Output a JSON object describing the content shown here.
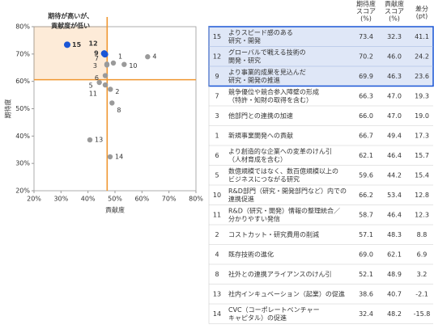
{
  "chart_data": {
    "type": "scatter",
    "xlabel": "貢献度",
    "ylabel": "期待度",
    "annotation": [
      "期待が高いが、",
      "貢献度が低い"
    ],
    "xlim": [
      20,
      80
    ],
    "ylim": [
      20,
      80
    ],
    "xticks": [
      {
        "value": 20,
        "label": "20%"
      },
      {
        "value": 30,
        "label": "30%"
      },
      {
        "value": 40,
        "label": "40%"
      },
      {
        "value": 50,
        "label": "50%"
      },
      {
        "value": 60,
        "label": "60%"
      },
      {
        "value": 70,
        "label": "70%"
      },
      {
        "value": 80,
        "label": "80%"
      }
    ],
    "yticks": [
      {
        "value": 20,
        "label": "20%"
      },
      {
        "value": 30,
        "label": "30%"
      },
      {
        "value": 40,
        "label": "40%"
      },
      {
        "value": 50,
        "label": "50%"
      },
      {
        "value": 60,
        "label": "60%"
      },
      {
        "value": 70,
        "label": "70%"
      },
      {
        "value": 80,
        "label": "80%"
      }
    ],
    "ref_x": 47.1,
    "ref_y": 60.6,
    "highlight_color": "#1a56d6",
    "point_color": "#9a9a9a",
    "ref_color": "#f0962f",
    "zone_color": "#fdebd8"
  },
  "table": {
    "header": [
      [
        "期待度",
        "スコア",
        "(%)"
      ],
      [
        "貢献度",
        "スコア",
        "(%)"
      ],
      [
        "差分",
        "(pt)"
      ]
    ],
    "rows": [
      {
        "id": 15,
        "label": [
          "よりスピード感のある",
          "研究・開発"
        ],
        "expect": 73.4,
        "contrib": 32.3,
        "diff": 41.1,
        "highlight": true
      },
      {
        "id": 12,
        "label": [
          "グローバルで戦える技術の",
          "開発・研究"
        ],
        "expect": 70.2,
        "contrib": {
          "value": 46,
          "label": "46.0"
        },
        "diff": 24.2,
        "highlight": true
      },
      {
        "id": 9,
        "label": [
          "より事業的成果を見込んだ",
          "研究・開発の推進"
        ],
        "expect": 69.9,
        "contrib": 46.3,
        "diff": 23.6,
        "highlight": true
      },
      {
        "id": 7,
        "label": [
          "競争優位や競合参入障壁の形成",
          "（特許・知財の取得を含む）"
        ],
        "expect": 66.3,
        "contrib": {
          "value": 47,
          "label": "47.0"
        },
        "diff": 19.3,
        "highlight": false
      },
      {
        "id": 3,
        "label": [
          "他部門との連携の加速"
        ],
        "expect": {
          "value": 66,
          "label": "66.0"
        },
        "contrib": {
          "value": 47,
          "label": "47.0"
        },
        "diff": {
          "value": 19,
          "label": "19.0"
        },
        "highlight": false
      },
      {
        "id": 1,
        "label": [
          "新規事業開発への貢献"
        ],
        "expect": 66.7,
        "contrib": 49.4,
        "diff": 17.3,
        "highlight": false
      },
      {
        "id": 6,
        "label": [
          "より創造的な企業への変革のけん引",
          "（人材育成を含む）"
        ],
        "expect": 62.1,
        "contrib": 46.4,
        "diff": 15.7,
        "highlight": false
      },
      {
        "id": 5,
        "label": [
          "数億規模ではなく、数百億規模以上の",
          "ビジネスにつながる研究"
        ],
        "expect": 59.6,
        "contrib": 44.2,
        "diff": 15.4,
        "highlight": false
      },
      {
        "id": 10,
        "label": [
          "R&D部門（研究・開発部門など）内での",
          "連携促進"
        ],
        "expect": 66.2,
        "contrib": 53.4,
        "diff": 12.8,
        "highlight": false
      },
      {
        "id": 11,
        "label": [
          "R&D（研究・開発）情報の整理統合／",
          "分かりやすい発信"
        ],
        "expect": 58.7,
        "contrib": 46.4,
        "diff": 12.3,
        "highlight": false
      },
      {
        "id": 2,
        "label": [
          "コストカット・研究費用の削減"
        ],
        "expect": 57.1,
        "contrib": 48.3,
        "diff": 8.8,
        "highlight": false
      },
      {
        "id": 4,
        "label": [
          "既存技術の進化"
        ],
        "expect": {
          "value": 69,
          "label": "69.0"
        },
        "contrib": 62.1,
        "diff": 6.9,
        "highlight": false
      },
      {
        "id": 8,
        "label": [
          "社外との連携アライアンスのけん引"
        ],
        "expect": 52.1,
        "contrib": 48.9,
        "diff": 3.2,
        "highlight": false
      },
      {
        "id": 13,
        "label": [
          "社内インキュベーション（起業）の促進"
        ],
        "expect": 38.6,
        "contrib": 40.7,
        "diff": -2.1,
        "highlight": false
      },
      {
        "id": 14,
        "label": [
          "CVC（コーポレートベンチャー",
          "キャピタル）の促進"
        ],
        "expect": 32.4,
        "contrib": 48.2,
        "diff": -15.8,
        "highlight": false
      }
    ]
  }
}
